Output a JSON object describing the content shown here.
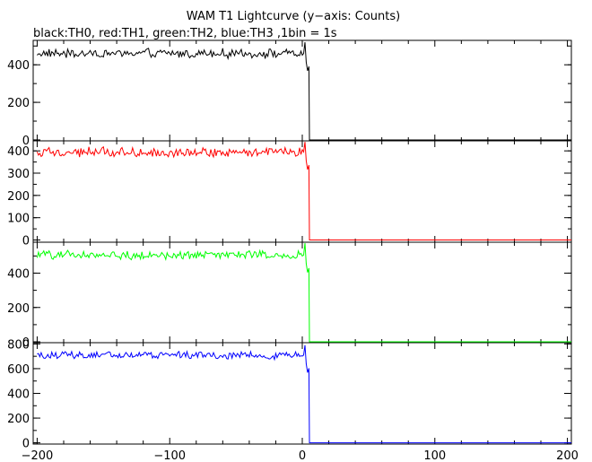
{
  "chart_data": {
    "type": "line",
    "title": "WAM T1 Lightcurve (y−axis: Counts)",
    "subtitle": "black:TH0, red:TH1, green:TH2, blue:TH3 ,1bin = 1s",
    "xlim": [
      -203,
      203
    ],
    "x_ticks": [
      -200,
      -100,
      0,
      100,
      200
    ],
    "x_tick_labels": [
      "−200",
      "−100",
      "0",
      "100",
      "200"
    ],
    "bin_seconds": 1,
    "cutoff_x": 5,
    "panels": [
      {
        "name": "TH0",
        "color": "#000000",
        "ylim": [
          -5,
          530
        ],
        "y_ticks": [
          0,
          200,
          400
        ],
        "mean_before": 460,
        "noise": 20,
        "peak": 520,
        "peak_x": 2
      },
      {
        "name": "TH1",
        "color": "#ff0000",
        "ylim": [
          -10,
          445
        ],
        "y_ticks": [
          0,
          100,
          200,
          300,
          400
        ],
        "mean_before": 395,
        "noise": 18,
        "peak": 440,
        "peak_x": 2
      },
      {
        "name": "TH2",
        "color": "#00ff00",
        "ylim": [
          -5,
          580
        ],
        "y_ticks": [
          0,
          200,
          400
        ],
        "mean_before": 505,
        "noise": 20,
        "peak": 575,
        "peak_x": 2
      },
      {
        "name": "TH3",
        "color": "#0000ff",
        "ylim": [
          -10,
          810
        ],
        "y_ticks": [
          0,
          200,
          400,
          600,
          800
        ],
        "mean_before": 710,
        "noise": 25,
        "peak": 790,
        "peak_x": 2
      }
    ]
  }
}
